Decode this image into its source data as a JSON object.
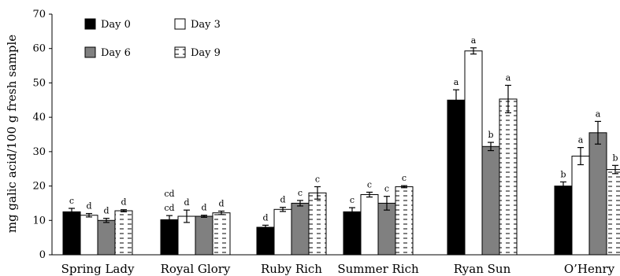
{
  "chart_data": {
    "type": "bar",
    "ylabel": "mg galic acid/100 g fresh sample",
    "xlabel": "",
    "ylim": [
      0,
      70
    ],
    "yticks": [
      0,
      10,
      20,
      30,
      40,
      50,
      60,
      70
    ],
    "grid": false,
    "legend_position": "top-left",
    "categories": [
      "Spring Lady",
      "Royal Glory",
      "Ruby Rich",
      "Summer Rich",
      "Ryan Sun",
      "O’Henry"
    ],
    "series": [
      {
        "name": "Day 0",
        "style": "solid-black",
        "color": "#000000",
        "values": [
          12.5,
          10.2,
          8.0,
          12.5,
          45.0,
          20.0
        ],
        "errors": [
          1.0,
          1.2,
          0.6,
          1.2,
          3.0,
          1.2
        ],
        "sig_labels": [
          "c",
          "cd",
          "d",
          "c",
          "a",
          "b"
        ]
      },
      {
        "name": "Day 3",
        "style": "white",
        "color": "#ffffff",
        "values": [
          11.5,
          11.2,
          13.2,
          17.5,
          59.3,
          28.7
        ],
        "errors": [
          0.5,
          1.8,
          0.6,
          0.7,
          0.9,
          2.5
        ],
        "sig_labels": [
          "d",
          "d",
          "d",
          "c",
          "a",
          "a"
        ]
      },
      {
        "name": "Day 6",
        "style": "solid-gray",
        "color": "#808080",
        "values": [
          10.0,
          11.2,
          15.0,
          15.0,
          31.5,
          35.5
        ],
        "errors": [
          0.6,
          0.3,
          0.8,
          2.0,
          1.2,
          3.3
        ],
        "sig_labels": [
          "d",
          "d",
          "c",
          "c",
          "b",
          "a"
        ]
      },
      {
        "name": "Day 9",
        "style": "dashed-white",
        "color": "#ffffff",
        "values": [
          12.8,
          12.2,
          18.0,
          19.8,
          45.3,
          24.8
        ],
        "errors": [
          0.3,
          0.5,
          1.8,
          0.3,
          4.0,
          1.2
        ],
        "sig_labels": [
          "d",
          "d",
          "c",
          "c",
          "a",
          "b"
        ]
      }
    ],
    "group_top_labels": [
      "",
      "cd",
      "",
      "",
      "",
      ""
    ]
  }
}
